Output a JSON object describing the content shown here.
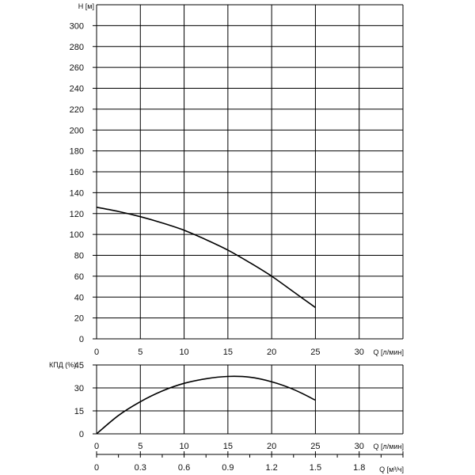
{
  "chart_data": [
    {
      "type": "line",
      "name": "head",
      "ylabel": "H [м]",
      "xlabel": "Q [л/мин]",
      "xlim": [
        0,
        35
      ],
      "ylim": [
        0,
        320
      ],
      "x_ticks": [
        "0",
        "5",
        "10",
        "15",
        "20",
        "25",
        "30"
      ],
      "y_ticks": [
        "0",
        "20",
        "40",
        "60",
        "80",
        "100",
        "120",
        "140",
        "160",
        "180",
        "200",
        "220",
        "240",
        "260",
        "280",
        "300"
      ],
      "grid": true,
      "series": [
        {
          "x": [
            0,
            2.5,
            5,
            7.5,
            10,
            12.5,
            15,
            17.5,
            20,
            22.5,
            25
          ],
          "y": [
            126,
            122,
            117,
            111,
            104,
            95,
            85,
            73,
            60,
            45,
            30
          ]
        }
      ]
    },
    {
      "type": "line",
      "name": "efficiency",
      "ylabel": "КПД (%)",
      "xlabel": "Q [л/мин]",
      "xlim": [
        0,
        35
      ],
      "ylim": [
        0,
        45
      ],
      "x_ticks": [
        "0",
        "5",
        "10",
        "15",
        "20",
        "25",
        "30"
      ],
      "y_ticks": [
        "0",
        "15",
        "30",
        "45"
      ],
      "grid": true,
      "series": [
        {
          "x": [
            0,
            2.5,
            5,
            7.5,
            10,
            12.5,
            15,
            17.5,
            20,
            22.5,
            25
          ],
          "y": [
            0,
            12,
            21,
            28,
            33,
            36,
            37.5,
            37,
            34,
            29,
            22
          ]
        }
      ]
    },
    {
      "type": "axis",
      "name": "secondary-flow-axis",
      "xlabel": "Q [м³/ч]",
      "x_ticks": [
        "0",
        "0.3",
        "0.6",
        "0.9",
        "1.2",
        "1.5",
        "1.8"
      ]
    }
  ]
}
